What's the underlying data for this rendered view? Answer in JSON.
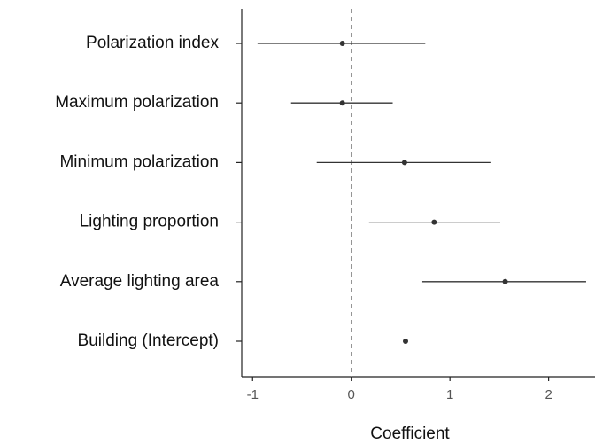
{
  "chart_data": {
    "type": "coefplot",
    "xlabel": "Coefficient",
    "categories": [
      "Polarization index",
      "Maximum polarization",
      "Minimum polarization",
      "Lighting proportion",
      "Average lighting area",
      "Building (Intercept)"
    ],
    "values": [
      -0.09,
      -0.09,
      0.54,
      0.84,
      1.56,
      0.55
    ],
    "lower": [
      -0.95,
      -0.61,
      -0.35,
      0.18,
      0.72,
      null
    ],
    "upper": [
      0.75,
      0.42,
      1.41,
      1.51,
      2.38,
      null
    ],
    "color": "#333333",
    "xlim": [
      -1.11,
      2.47
    ],
    "xticks": [
      -1,
      0,
      1,
      2
    ],
    "reference_line": 0
  }
}
